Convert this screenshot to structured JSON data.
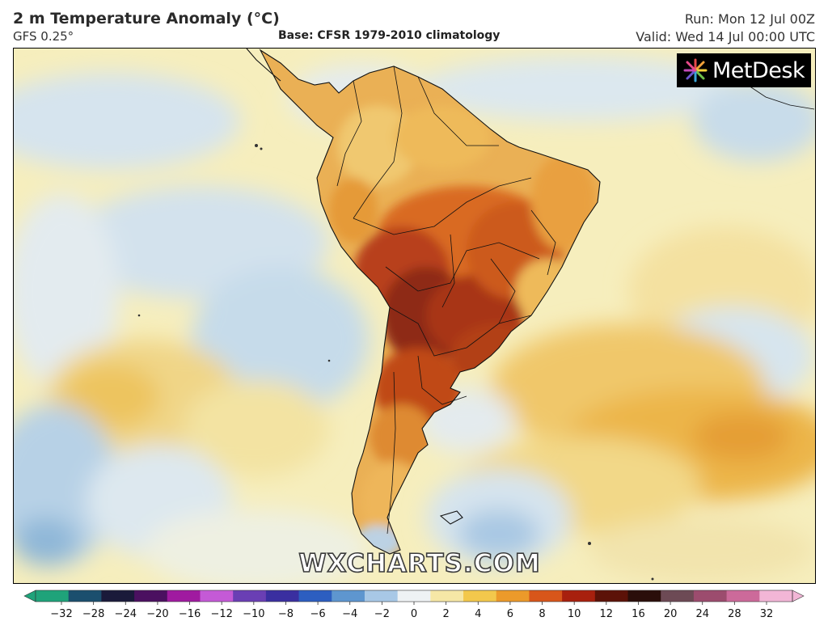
{
  "header": {
    "title": "2 m Temperature Anomaly (°C)",
    "model": "GFS 0.25°",
    "base": "Base: CFSR 1979-2010 climatology",
    "run": "Run: Mon 12 Jul 00Z",
    "valid": "Valid: Wed 14 Jul 00:00 UTC"
  },
  "logo": {
    "text": "MetDesk",
    "icon": "metdesk-burst-icon"
  },
  "watermark": "WXCHARTS.COM",
  "colorbar": {
    "ticks": [
      "−32",
      "−28",
      "−24",
      "−20",
      "−16",
      "−12",
      "−10",
      "−8",
      "−6",
      "−4",
      "−2",
      "0",
      "2",
      "4",
      "6",
      "8",
      "10",
      "12",
      "16",
      "20",
      "24",
      "28",
      "32"
    ],
    "colors": [
      "#1fa37a",
      "#1b4f6e",
      "#1a1a3a",
      "#4b1060",
      "#a01aa0",
      "#c45ad6",
      "#6a3fb4",
      "#3a2fa0",
      "#2c5ec0",
      "#5e96cf",
      "#a8c8e6",
      "#eef2f4",
      "#f6e7a6",
      "#f3c84c",
      "#ec9a2a",
      "#d8561a",
      "#a8200e",
      "#5c1208",
      "#2a0e0a",
      "#6d4a55",
      "#9c4c6e",
      "#cc6a9a",
      "#f2b6d6"
    ]
  },
  "map": {
    "region": "South America",
    "anomaly_colors": {
      "very_hot": "#8a2410",
      "hot": "#c94c18",
      "warm": "#eaa03a",
      "mild": "#f4d77c",
      "neutral": "#f3eed0",
      "cool": "#c8dcea",
      "cold": "#8eb8d8"
    }
  }
}
